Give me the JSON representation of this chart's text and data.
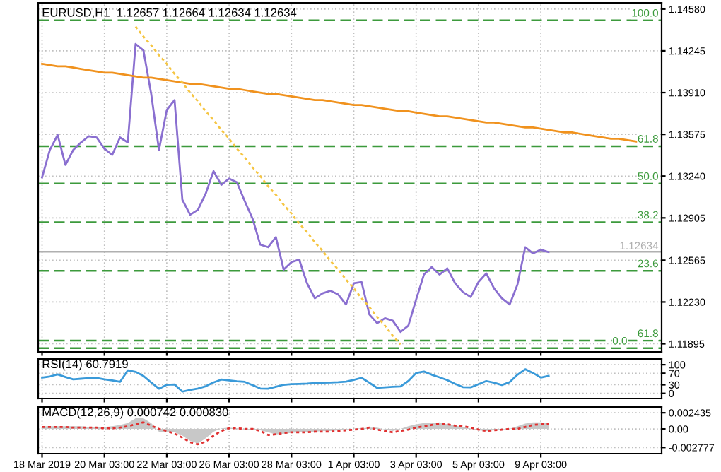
{
  "chart_data": [
    {
      "type": "line",
      "title": "EURUSD,H1  1.12657 1.12664 1.12634 1.12634",
      "categories": [
        null,
        null,
        null,
        null,
        null,
        null,
        null,
        null,
        null,
        null,
        null,
        null,
        null,
        null,
        null,
        null,
        null,
        null,
        null,
        null,
        null,
        null,
        null,
        null,
        null,
        null,
        null,
        null,
        null,
        null,
        null,
        null,
        null,
        null,
        null,
        null,
        null,
        null,
        null,
        null,
        null,
        null,
        null,
        null,
        null,
        null,
        null,
        null,
        null,
        null,
        null,
        null,
        null,
        null,
        null,
        null,
        null,
        null,
        null,
        null,
        null,
        null,
        null,
        null,
        null,
        null,
        null,
        null,
        null,
        null,
        null,
        null,
        null,
        null,
        null,
        null,
        null,
        null,
        null,
        null
      ],
      "ylim": [
        1.1183,
        1.1463
      ],
      "yticks": [
        {
          "value": 1.1458,
          "label": "1.14580"
        },
        {
          "value": 1.14245,
          "label": "1.14245"
        },
        {
          "value": 1.1391,
          "label": "1.13910"
        },
        {
          "value": 1.13575,
          "label": "1.13575"
        },
        {
          "value": 1.1324,
          "label": "1.13240"
        },
        {
          "value": 1.12905,
          "label": "1.12905"
        },
        {
          "value": 1.12565,
          "label": "1.12565"
        },
        {
          "value": 1.1223,
          "label": "1.12230"
        },
        {
          "value": 1.11895,
          "label": "1.11895"
        }
      ],
      "tick_labels": "y",
      "grid": true,
      "series": [
        {
          "color": "#8a6fd0",
          "values": [
            1.1323,
            1.1345,
            1.1357,
            1.1333,
            1.1345,
            1.1351,
            1.1356,
            1.1355,
            1.1346,
            1.1341,
            1.1355,
            1.1351,
            1.143,
            1.1425,
            1.139,
            1.1345,
            1.1377,
            1.1385,
            1.1305,
            1.1293,
            1.1297,
            1.131,
            1.1328,
            1.1317,
            1.1322,
            1.1319,
            1.1304,
            1.129,
            1.1269,
            1.1267,
            1.1275,
            1.1249,
            1.1255,
            1.1257,
            1.1238,
            1.1226,
            1.123,
            1.1232,
            1.1229,
            1.1221,
            1.1238,
            1.1239,
            1.1213,
            1.1206,
            1.121,
            1.1208,
            1.1199,
            1.1204,
            1.1225,
            1.1245,
            1.1251,
            1.1245,
            1.125,
            1.1238,
            1.1231,
            1.1227,
            1.1239,
            1.1246,
            1.1234,
            1.1226,
            1.1221,
            1.1237,
            1.1267,
            1.1262,
            1.1265,
            1.1263,
            null,
            null,
            null,
            null,
            null,
            null,
            null,
            null,
            null,
            null,
            null,
            null,
            null,
            null
          ]
        },
        {
          "color": "#f0921e",
          "values": [
            1.1414,
            1.1413,
            1.1412,
            1.1412,
            1.1411,
            1.141,
            1.1409,
            1.1408,
            1.1407,
            1.1407,
            1.1406,
            1.1405,
            1.1404,
            1.1403,
            1.1403,
            1.1402,
            1.1401,
            1.14,
            1.1399,
            1.1398,
            1.1398,
            1.1397,
            1.1396,
            1.1395,
            1.1394,
            1.1394,
            1.1393,
            1.1392,
            1.1391,
            1.139,
            1.139,
            1.1389,
            1.1388,
            1.1387,
            1.1386,
            1.1385,
            1.1385,
            1.1384,
            1.1383,
            1.1382,
            1.1381,
            1.1381,
            1.138,
            1.1379,
            1.1378,
            1.1377,
            1.1376,
            1.1376,
            1.1375,
            1.1374,
            1.1373,
            1.1372,
            1.1372,
            1.1371,
            1.137,
            1.1369,
            1.1368,
            1.1367,
            1.1367,
            1.1366,
            1.1365,
            1.1364,
            1.1363,
            1.1363,
            1.1362,
            1.1361,
            1.136,
            1.1359,
            1.1359,
            1.1358,
            1.1357,
            1.1356,
            1.1355,
            1.1354,
            1.1354,
            1.1353,
            1.1352,
            1.1351,
            null,
            null
          ]
        },
        {
          "color": "#f5c542",
          "line_style": "dotted",
          "values": [
            null,
            null,
            null,
            null,
            null,
            null,
            null,
            null,
            null,
            null,
            null,
            null,
            1.1444,
            1.1436,
            1.1429,
            1.1421,
            1.1414,
            1.1406,
            1.1399,
            1.1391,
            1.1384,
            1.1376,
            1.1369,
            1.1361,
            1.1354,
            1.1346,
            1.1339,
            1.1331,
            1.1324,
            1.1316,
            1.1309,
            1.1301,
            1.1294,
            1.1286,
            1.1279,
            1.1271,
            1.1264,
            1.1256,
            1.1249,
            1.1241,
            1.1234,
            1.1226,
            1.1219,
            1.1211,
            1.1204,
            1.1196,
            1.1189,
            null,
            null,
            null,
            null,
            null,
            null,
            null,
            null,
            null,
            null,
            null,
            null,
            null,
            null,
            null,
            null,
            null,
            null,
            null,
            null,
            null,
            null,
            null,
            null,
            null,
            null,
            null,
            null,
            null,
            null,
            null,
            null,
            null
          ]
        }
      ],
      "ref_lines": [
        {
          "axis": "y",
          "value": 1.1449,
          "color": "#3c9a3c",
          "line_style": "dashed"
        },
        {
          "axis": "y",
          "value": 1.1348,
          "color": "#3c9a3c",
          "line_style": "dashed"
        },
        {
          "axis": "y",
          "value": 1.1318,
          "color": "#3c9a3c",
          "line_style": "dashed"
        },
        {
          "axis": "y",
          "value": 1.1287,
          "color": "#3c9a3c",
          "line_style": "dashed"
        },
        {
          "axis": "y",
          "value": 1.1248,
          "color": "#3c9a3c",
          "line_style": "dashed"
        },
        {
          "axis": "y",
          "value": 1.1192,
          "color": "#3c9a3c",
          "line_style": "dashed"
        },
        {
          "axis": "y",
          "value": 1.1186,
          "color": "#3c9a3c",
          "line_style": "dashed"
        },
        {
          "axis": "y",
          "value": 1.12634,
          "label": "1.12634",
          "color": "#b0b0b0",
          "line_style": "solid"
        }
      ],
      "annotations": [
        "100.0",
        "61.8",
        "50.0",
        "38.2",
        "23.6",
        "61.8",
        "0.0"
      ]
    },
    {
      "type": "line",
      "title": "RSI(14) 60.7919",
      "categories": [
        null,
        null,
        null,
        null,
        null,
        null,
        null,
        null,
        null,
        null,
        null,
        null,
        null,
        null,
        null,
        null,
        null,
        null,
        null,
        null,
        null,
        null,
        null,
        null,
        null,
        null,
        null,
        null,
        null,
        null,
        null,
        null,
        null,
        null,
        null,
        null,
        null,
        null,
        null,
        null,
        null,
        null,
        null,
        null,
        null,
        null,
        null,
        null,
        null,
        null,
        null,
        null,
        null,
        null,
        null,
        null,
        null,
        null,
        null,
        null,
        null,
        null,
        null,
        null,
        null,
        null,
        null,
        null,
        null,
        null,
        null,
        null,
        null,
        null,
        null,
        null,
        null,
        null,
        null,
        null
      ],
      "ylim": [
        -18,
        120
      ],
      "yticks": [
        0,
        30,
        70,
        100
      ],
      "tick_labels": "y",
      "grid": true,
      "series": [
        {
          "color": "#3a9ad9",
          "values": [
            55,
            59,
            66,
            57,
            49,
            51,
            53,
            54,
            49,
            45,
            40,
            80,
            75,
            61,
            38,
            16,
            30,
            31,
            6,
            12,
            17,
            25,
            38,
            48,
            45,
            42,
            40,
            29,
            17,
            16,
            23,
            30,
            32,
            33,
            34,
            36,
            37,
            38,
            39,
            41,
            47,
            54,
            37,
            19,
            21,
            23,
            24,
            43,
            71,
            76,
            65,
            56,
            46,
            33,
            22,
            21,
            32,
            43,
            37,
            29,
            39,
            65,
            84,
            71,
            55,
            61,
            null,
            null,
            null,
            null,
            null,
            null,
            null,
            null,
            null,
            null,
            null,
            null,
            null,
            null
          ]
        }
      ]
    },
    {
      "type": "line",
      "title": "MACD(12,26,9) 0.000742 0.000830",
      "categories": [
        "18 Mar 2019",
        null,
        null,
        null,
        null,
        null,
        null,
        null,
        "20 Mar 03:00",
        null,
        null,
        null,
        null,
        null,
        null,
        null,
        "22 Mar 03:00",
        null,
        null,
        null,
        null,
        null,
        null,
        null,
        "26 Mar 03:00",
        null,
        null,
        null,
        null,
        null,
        null,
        null,
        "28 Mar 03:00",
        null,
        null,
        null,
        null,
        null,
        null,
        null,
        "1 Apr 03:00",
        null,
        null,
        null,
        null,
        null,
        null,
        null,
        "3 Apr 03:00",
        null,
        null,
        null,
        null,
        null,
        null,
        null,
        "5 Apr 03:00",
        null,
        null,
        null,
        null,
        null,
        null,
        null,
        "9 Apr 03:00",
        null,
        null,
        null,
        null,
        null,
        null,
        null,
        null,
        null,
        null,
        null,
        null,
        null,
        null,
        null
      ],
      "ylim": [
        -0.0037,
        0.0033
      ],
      "yticks": [
        {
          "value": 0.002435,
          "label": "0.002435"
        },
        {
          "value": 0,
          "label": "0.00"
        },
        {
          "value": -0.002777,
          "label": "-0.002777"
        }
      ],
      "grid": true,
      "series": [
        {
          "type": "area",
          "color": "#c8c8c8",
          "values": [
            0.0004,
            0.0004,
            0.0004,
            0.0004,
            0.0004,
            0.0004,
            0.0003,
            0.0003,
            0.0003,
            0.0004,
            0.0006,
            0.0009,
            0.0016,
            0.0016,
            0.0009,
            -0.0004,
            -0.0005,
            -0.0005,
            -0.001,
            -0.0018,
            -0.0022,
            -0.0014,
            -0.0004,
            0.0001,
            0.0002,
            0.0001,
            -0.0001,
            -0.0001,
            -0.0002,
            -0.0005,
            -0.0008,
            -0.0007,
            -0.0006,
            -0.0005,
            -0.0005,
            -0.0004,
            -0.0003,
            -0.0003,
            -0.0002,
            -0.0001,
            0.0,
            0.0001,
            0.0002,
            0.0002,
            -0.0001,
            -0.0003,
            0.0,
            0.0004,
            0.0007,
            0.0009,
            0.0009,
            0.001,
            0.0007,
            0.0005,
            0.0003,
            0.0,
            -0.0002,
            -0.0003,
            -0.0002,
            -0.0001,
            0.0,
            0.0004,
            0.0008,
            0.001,
            0.001,
            0.0009,
            null,
            null,
            null,
            null,
            null,
            null,
            null,
            null,
            null,
            null,
            null,
            null,
            null,
            null
          ]
        },
        {
          "type": "line",
          "color": "#e03030",
          "line_style": "dotted",
          "values": [
            0.0003,
            0.0003,
            0.0003,
            0.0003,
            0.0002,
            0.0002,
            0.0002,
            0.0002,
            0.0001,
            0.0001,
            0.0002,
            0.0004,
            0.0007,
            0.001,
            0.0005,
            0.0,
            -0.0003,
            -0.0007,
            -0.0013,
            -0.002,
            -0.0023,
            -0.0019,
            -0.001,
            -0.0003,
            0.0001,
            0.0001,
            0.0,
            0.0,
            -0.0003,
            -0.0009,
            -0.0008,
            -0.0006,
            -0.0005,
            -0.0005,
            -0.0005,
            -0.0004,
            -0.0004,
            -0.0004,
            -0.0003,
            -0.0002,
            -0.0001,
            0.0,
            0.0002,
            -0.0001,
            -0.0003,
            -0.0005,
            -0.0003,
            -0.0001,
            0.0002,
            0.0004,
            0.0006,
            0.0008,
            0.0007,
            0.0005,
            0.0004,
            0.0002,
            -0.0001,
            -0.0003,
            -0.0002,
            -0.0001,
            0.0,
            0.0,
            0.0003,
            0.0006,
            0.0007,
            0.0008,
            null,
            null,
            null,
            null,
            null,
            null,
            null,
            null,
            null,
            null,
            null,
            null,
            null,
            null
          ]
        }
      ]
    }
  ]
}
